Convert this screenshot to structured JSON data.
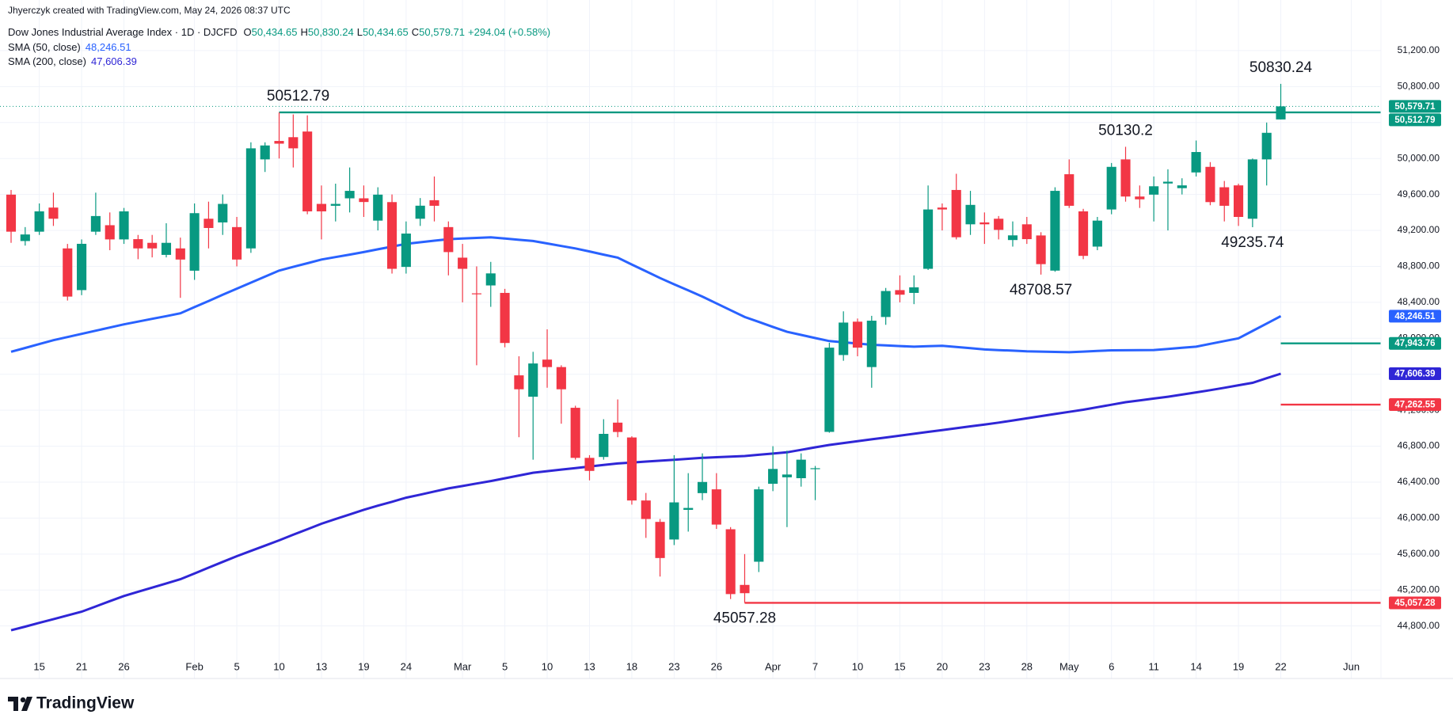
{
  "chart_data": {
    "type": "candlestick",
    "attribution": "Jhyerczyk created with TradingView.com, May 24, 2026 08:37 UTC",
    "title": "Dow Jones Industrial Average Index · 1D · DJCFD",
    "ohlc_legend": [
      {
        "key": "O",
        "value": "50,434.65"
      },
      {
        "key": "H",
        "value": "50,830.24"
      },
      {
        "key": "L",
        "value": "50,434.65"
      },
      {
        "key": "C",
        "value": "50,579.71"
      }
    ],
    "change": "+294.04 (+0.58%)",
    "branding": "TradingView",
    "up_color": "#089981",
    "down_color": "#f23645",
    "grid": true,
    "categories": [
      null,
      null,
      "15",
      null,
      null,
      "21",
      null,
      null,
      "26",
      null,
      null,
      null,
      null,
      "Feb",
      null,
      null,
      "5",
      null,
      null,
      "10",
      null,
      null,
      "13",
      null,
      null,
      "19",
      null,
      null,
      "24",
      null,
      null,
      null,
      "Mar",
      null,
      null,
      "5",
      null,
      null,
      "10",
      null,
      null,
      "13",
      null,
      null,
      "18",
      null,
      null,
      "23",
      null,
      null,
      "26",
      null,
      null,
      null,
      "Apr",
      null,
      null,
      "7",
      null,
      null,
      "10",
      null,
      null,
      "15",
      null,
      null,
      "20",
      null,
      null,
      "23",
      null,
      null,
      "28",
      null,
      null,
      "May",
      null,
      null,
      "6",
      null,
      null,
      "11",
      null,
      null,
      "14",
      null,
      null,
      "19",
      null,
      null,
      "22",
      null,
      null,
      null,
      null,
      "Jun",
      null,
      null
    ],
    "open": [
      49598,
      49082,
      49186,
      49454,
      49000,
      48536,
      49186,
      49258,
      49100,
      49103,
      49062,
      48928,
      49000,
      48752,
      49330,
      49289,
      49237,
      49000,
      49990,
      50195,
      50237,
      50300,
      49495,
      49474,
      49557,
      49557,
      49309,
      49515,
      48794,
      49330,
      49536,
      49237,
      48897,
      48500,
      48588,
      48505,
      47588,
      47350,
      47763,
      47680,
      47227,
      46670,
      46680,
      47062,
      46897,
      46196,
      45958,
      45762,
      46092,
      46278,
      46320,
      45876,
      45257,
      45515,
      46382,
      46454,
      46444,
      46545,
      46959,
      47814,
      48185,
      47680,
      48237,
      48536,
      48505,
      48773,
      49454,
      49650,
      49268,
      49289,
      49330,
      49093,
      49268,
      49144,
      48753,
      49825,
      49412,
      49020,
      49433,
      49990,
      49577,
      49598,
      49722,
      49670,
      49845,
      49907,
      49680,
      49701,
      49330,
      49990,
      50434.65,
      null,
      null,
      null,
      null,
      null,
      null,
      null
    ],
    "high": [
      49650,
      49237,
      49500,
      49620,
      49050,
      49100,
      49620,
      49400,
      49450,
      49150,
      49150,
      49280,
      49120,
      49500,
      49520,
      49600,
      49350,
      50180,
      50180,
      50512.79,
      50490,
      50480,
      49700,
      49720,
      49900,
      49700,
      49680,
      49600,
      49300,
      49560,
      49800,
      49300,
      49050,
      48800,
      48850,
      48550,
      47800,
      47850,
      48100,
      47700,
      47250,
      46700,
      47100,
      47320,
      46910,
      46280,
      45990,
      46700,
      46500,
      46720,
      46500,
      45900,
      45600,
      46350,
      46800,
      46750,
      46720,
      46580,
      47950,
      48300,
      48220,
      48250,
      48560,
      48700,
      48700,
      49700,
      49500,
      49830,
      49640,
      49400,
      49360,
      49300,
      49350,
      49180,
      49680,
      49990,
      49440,
      49350,
      49950,
      50130.2,
      49700,
      49800,
      49880,
      49780,
      50200,
      49960,
      49750,
      49720,
      50000,
      50400,
      50830.24,
      null,
      null,
      null,
      null,
      null,
      null,
      null
    ],
    "low": [
      49062,
      49031,
      49150,
      49250,
      48420,
      48480,
      49150,
      48980,
      49050,
      48880,
      48900,
      48900,
      48450,
      48650,
      49000,
      49150,
      48800,
      48950,
      49850,
      50000,
      49900,
      49380,
      49100,
      49300,
      49400,
      49350,
      49200,
      48720,
      48720,
      49250,
      49300,
      48700,
      48400,
      47700,
      48350,
      47900,
      46900,
      46650,
      47450,
      47050,
      46650,
      46420,
      46650,
      46900,
      46150,
      45780,
      45350,
      45700,
      45850,
      46200,
      45880,
      45100,
      45057.28,
      45400,
      46300,
      45900,
      46350,
      46200,
      46950,
      47750,
      47800,
      47450,
      48150,
      48400,
      48380,
      48760,
      49200,
      49100,
      49150,
      49050,
      49100,
      49020,
      49050,
      48708.57,
      48740,
      49450,
      48880,
      48980,
      49380,
      49520,
      49450,
      49300,
      49200,
      49600,
      49800,
      49480,
      49300,
      49250,
      49235.74,
      49700,
      50434.65,
      null,
      null,
      null,
      null,
      null,
      null,
      null
    ],
    "close": [
      49186,
      49155,
      49412,
      49330,
      48464,
      49051,
      49360,
      49100,
      49412,
      49000,
      49000,
      49062,
      48876,
      49392,
      49227,
      49495,
      48876,
      50113,
      50145,
      50165,
      50113,
      49412,
      49412,
      49495,
      49640,
      49516,
      49598,
      48773,
      49165,
      49475,
      49474,
      48959,
      48773,
      48490,
      48722,
      47948,
      47433,
      47720,
      47680,
      47433,
      46670,
      46525,
      46937,
      46958,
      46196,
      45990,
      45556,
      46175,
      46113,
      46402,
      45928,
      45155,
      45165,
      46320,
      46547,
      46485,
      46650,
      46555,
      47896,
      48175,
      47896,
      48196,
      48526,
      48485,
      48567,
      49433,
      49433,
      49124,
      49484,
      49268,
      49206,
      49145,
      49103,
      48825,
      49640,
      49474,
      48917,
      49309,
      49907,
      49577,
      49546,
      49691,
      49742,
      49701,
      50072,
      49515,
      49474,
      49350,
      49990,
      50285.67,
      50579.71,
      null,
      null,
      null,
      null,
      null,
      null,
      null
    ],
    "series": [
      {
        "name": "SMA (50, close)",
        "color": "#2962ff",
        "last_label": "48,246.51",
        "values": [
          47850,
          47893,
          47936,
          47979,
          48014,
          48049,
          48085,
          48120,
          48155,
          48186,
          48217,
          48247,
          48278,
          48347,
          48415,
          48484,
          48552,
          48619,
          48686,
          48753,
          48794,
          48835,
          48876,
          48904,
          48931,
          48959,
          48990,
          49020,
          49051,
          49068,
          49086,
          49103,
          49110,
          49117,
          49124,
          49110,
          49096,
          49082,
          49055,
          49027,
          49000,
          48966,
          48931,
          48897,
          48821,
          48746,
          48670,
          48601,
          48533,
          48464,
          48388,
          48313,
          48237,
          48182,
          48127,
          48072,
          48038,
          48003,
          47969,
          47955,
          47942,
          47928,
          47921,
          47914,
          47907,
          47912,
          47917,
          47903,
          47890,
          47876,
          47869,
          47863,
          47856,
          47852,
          47849,
          47845,
          47852,
          47859,
          47866,
          47867,
          47869,
          47870,
          47882,
          47895,
          47907,
          47938,
          47969,
          48000,
          48082,
          48164,
          48246.51,
          null,
          null,
          null,
          null,
          null,
          null,
          null
        ]
      },
      {
        "name": "SMA (200, close)",
        "color": "#2f26d6",
        "last_label": "47,606.39",
        "values": [
          44752,
          44793,
          44835,
          44876,
          44918,
          44959,
          45017,
          45076,
          45134,
          45181,
          45227,
          45274,
          45320,
          45384,
          45449,
          45513,
          45577,
          45636,
          45694,
          45753,
          45815,
          45876,
          45938,
          45990,
          46041,
          46093,
          46138,
          46182,
          46227,
          46261,
          46296,
          46330,
          46357,
          46385,
          46412,
          46443,
          46474,
          46505,
          46522,
          46540,
          46557,
          46574,
          46591,
          46608,
          46618,
          46629,
          46639,
          46649,
          46660,
          46670,
          46677,
          46684,
          46691,
          46705,
          46718,
          46732,
          46759,
          46787,
          46814,
          46835,
          46855,
          46876,
          46897,
          46917,
          46938,
          46959,
          46979,
          47000,
          47021,
          47041,
          47062,
          47086,
          47110,
          47134,
          47158,
          47182,
          47206,
          47234,
          47261,
          47289,
          47309,
          47330,
          47350,
          47374,
          47399,
          47423,
          47450,
          47478,
          47505,
          47556,
          47606.39,
          null,
          null,
          null,
          null,
          null,
          null,
          null
        ]
      }
    ],
    "levels": [
      {
        "value": 50512.79,
        "label": "50,512.79",
        "color": "#089981"
      },
      {
        "value": 47943.76,
        "label": "47,943.76",
        "color": "#089981"
      },
      {
        "value": 47262.55,
        "label": "47,262.55",
        "color": "#f23645"
      },
      {
        "value": 45057.28,
        "label": "45,057.28",
        "color": "#f23645"
      }
    ],
    "ylim": [
      44216,
      51763
    ],
    "yticks": [
      {
        "value": 44800,
        "label": "44,800.00"
      },
      {
        "value": 45200,
        "label": "45,200.00"
      },
      {
        "value": 45600,
        "label": "45,600.00"
      },
      {
        "value": 46000,
        "label": "46,000.00"
      },
      {
        "value": 46400,
        "label": "46,400.00"
      },
      {
        "value": 46800,
        "label": "46,800.00"
      },
      {
        "value": 47200,
        "label": "47,200.00"
      },
      {
        "value": 47600,
        "label": "47,600.00"
      },
      {
        "value": 48000,
        "label": "48,000.00"
      },
      {
        "value": 48400,
        "label": "48,400.00"
      },
      {
        "value": 48800,
        "label": "48,800.00"
      },
      {
        "value": 49200,
        "label": "49,200.00"
      },
      {
        "value": 49600,
        "label": "49,600.00"
      },
      {
        "value": 50000,
        "label": "50,000.00"
      },
      {
        "value": 50400,
        "label": "50,400.00"
      },
      {
        "value": 50800,
        "label": "50,800.00"
      },
      {
        "value": 51200,
        "label": "51,200.00"
      }
    ]
  }
}
